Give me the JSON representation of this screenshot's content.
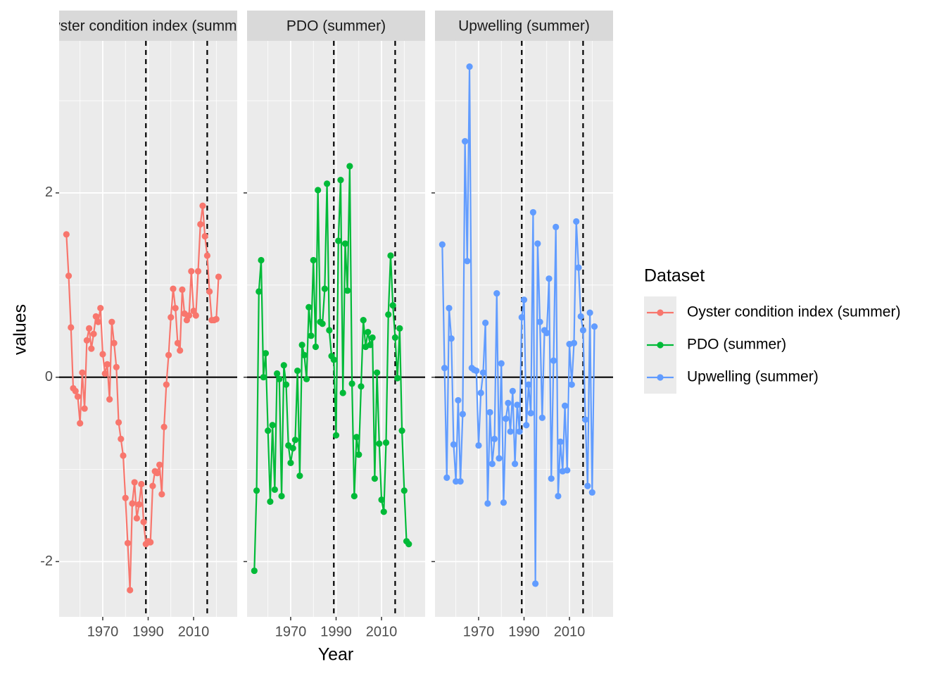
{
  "chart_data": {
    "type": "line",
    "xlabel": "Year",
    "ylabel": "values",
    "legend_title": "Dataset",
    "legend_position": "right",
    "grid": true,
    "xlim": [
      1950.8,
      2029.2
    ],
    "ylim": [
      -2.6,
      3.65
    ],
    "xticks": [
      1970,
      1990,
      2010
    ],
    "yticks": [
      -2,
      0,
      2
    ],
    "hline": 0,
    "vlines": [
      1989,
      2016
    ],
    "series": [
      {
        "name": "Oyster condition index (summer)",
        "color": "#F8766D",
        "x": [
          1954,
          1955,
          1956,
          1957,
          1958,
          1959,
          1960,
          1961,
          1962,
          1963,
          1964,
          1965,
          1966,
          1967,
          1968,
          1969,
          1970,
          1971,
          1972,
          1973,
          1974,
          1975,
          1976,
          1977,
          1978,
          1979,
          1980,
          1981,
          1982,
          1983,
          1984,
          1985,
          1986,
          1987,
          1988,
          1989,
          1990,
          1991,
          1992,
          1993,
          1994,
          1995,
          1996,
          1997,
          1998,
          1999,
          2000,
          2001,
          2002,
          2003,
          2004,
          2005,
          2006,
          2007,
          2008,
          2009,
          2010,
          2011,
          2012,
          2013,
          2014,
          2015,
          2016,
          2017,
          2018,
          2019,
          2020,
          2021
        ],
        "values": [
          1.55,
          1.1,
          0.54,
          -0.12,
          -0.15,
          -0.21,
          -0.5,
          0.05,
          -0.34,
          0.4,
          0.53,
          0.31,
          0.47,
          0.66,
          0.6,
          0.75,
          0.25,
          0.04,
          0.14,
          -0.24,
          0.6,
          0.37,
          0.11,
          -0.49,
          -0.67,
          -0.85,
          -1.31,
          -1.8,
          -2.31,
          -1.37,
          -1.14,
          -1.53,
          -1.38,
          -1.16,
          -1.57,
          -1.81,
          -1.78,
          -1.79,
          -1.18,
          -1.02,
          -1.04,
          -0.95,
          -1.27,
          -0.54,
          -0.08,
          0.24,
          0.65,
          0.96,
          0.75,
          0.37,
          0.29,
          0.95,
          0.69,
          0.62,
          0.67,
          1.15,
          0.72,
          0.67,
          1.15,
          1.66,
          1.86,
          1.53,
          1.32,
          0.93,
          0.62,
          0.62,
          0.63,
          1.09
        ]
      },
      {
        "name": "PDO (summer)",
        "color": "#00BA38",
        "x": [
          1954,
          1955,
          1956,
          1957,
          1958,
          1959,
          1960,
          1961,
          1962,
          1963,
          1964,
          1965,
          1966,
          1967,
          1968,
          1969,
          1970,
          1971,
          1972,
          1973,
          1974,
          1975,
          1976,
          1977,
          1978,
          1979,
          1980,
          1981,
          1982,
          1983,
          1984,
          1985,
          1986,
          1987,
          1988,
          1989,
          1990,
          1991,
          1992,
          1993,
          1994,
          1995,
          1996,
          1997,
          1998,
          1999,
          2000,
          2001,
          2002,
          2003,
          2004,
          2005,
          2006,
          2007,
          2008,
          2009,
          2010,
          2011,
          2012,
          2013,
          2014,
          2015,
          2016,
          2017,
          2018,
          2019,
          2020,
          2021,
          2022
        ],
        "values": [
          -2.1,
          -1.23,
          0.93,
          1.27,
          0.0,
          0.26,
          -0.58,
          -1.35,
          -0.52,
          -1.22,
          0.04,
          -0.02,
          -1.29,
          0.13,
          -0.08,
          -0.74,
          -0.93,
          -0.77,
          -0.68,
          0.07,
          -1.07,
          0.35,
          0.24,
          -0.02,
          0.76,
          0.45,
          1.27,
          0.33,
          2.03,
          0.6,
          0.58,
          0.96,
          2.1,
          0.51,
          0.23,
          0.19,
          -0.63,
          1.48,
          2.14,
          -0.17,
          1.45,
          0.94,
          2.29,
          -0.07,
          -1.29,
          -0.65,
          -0.84,
          -0.1,
          0.62,
          0.33,
          0.49,
          0.35,
          0.43,
          -1.1,
          0.05,
          -0.72,
          -1.33,
          -1.46,
          -0.71,
          0.68,
          1.32,
          0.78,
          0.43,
          -0.01,
          0.53,
          -0.58,
          -1.23,
          -1.78,
          -1.81
        ]
      },
      {
        "name": "Upwelling (summer)",
        "color": "#619CFF",
        "x": [
          1954,
          1955,
          1956,
          1957,
          1958,
          1959,
          1960,
          1961,
          1962,
          1963,
          1964,
          1965,
          1966,
          1967,
          1968,
          1969,
          1970,
          1971,
          1972,
          1973,
          1974,
          1975,
          1976,
          1977,
          1978,
          1979,
          1980,
          1981,
          1982,
          1983,
          1984,
          1985,
          1986,
          1987,
          1988,
          1989,
          1990,
          1991,
          1992,
          1993,
          1994,
          1995,
          1996,
          1997,
          1998,
          1999,
          2000,
          2001,
          2002,
          2003,
          2004,
          2005,
          2006,
          2007,
          2008,
          2009,
          2010,
          2011,
          2012,
          2013,
          2014,
          2015,
          2016,
          2017,
          2018,
          2019,
          2020,
          2021
        ],
        "values": [
          1.44,
          0.1,
          -1.09,
          0.75,
          0.42,
          -0.73,
          -1.13,
          -0.25,
          -1.13,
          -0.4,
          2.56,
          1.26,
          3.37,
          0.1,
          0.08,
          0.07,
          -0.74,
          -0.17,
          0.05,
          0.59,
          -1.37,
          -0.38,
          -0.94,
          -0.67,
          0.91,
          -0.88,
          0.15,
          -1.36,
          -0.45,
          -0.28,
          -0.59,
          -0.15,
          -0.94,
          -0.3,
          -0.59,
          0.65,
          0.84,
          -0.52,
          -0.08,
          -0.39,
          1.79,
          -2.24,
          1.45,
          0.6,
          -0.44,
          0.51,
          0.48,
          1.07,
          -1.1,
          0.18,
          1.63,
          -1.29,
          -0.7,
          -1.02,
          -0.31,
          -1.01,
          0.36,
          -0.08,
          0.37,
          1.69,
          1.19,
          0.66,
          0.51,
          -0.46,
          -1.18,
          0.7,
          -1.25,
          0.55
        ]
      }
    ]
  }
}
